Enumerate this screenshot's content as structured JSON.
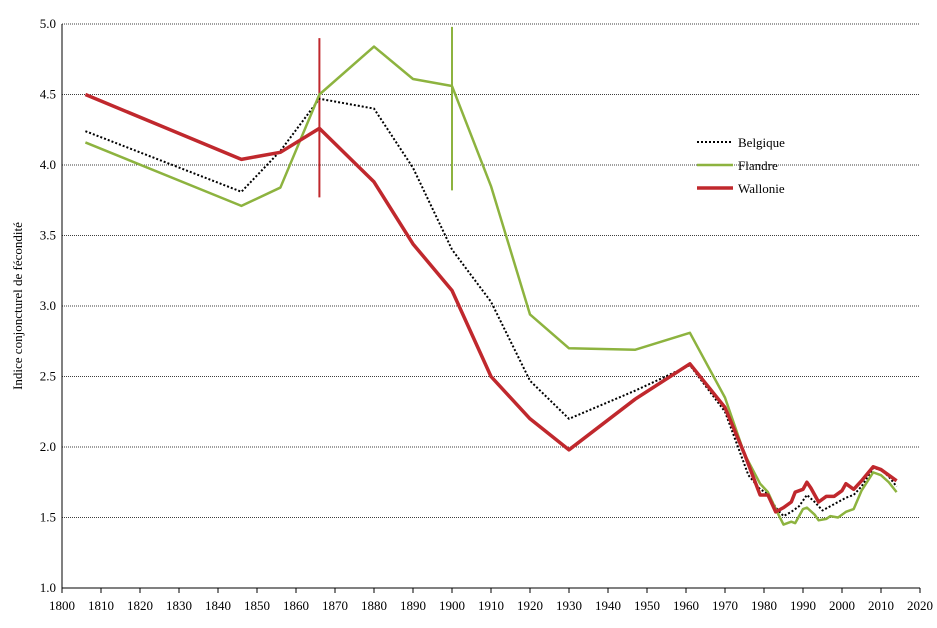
{
  "chart_data": {
    "type": "line",
    "ylabel": "Indice conjoncturel de fécondité",
    "xlim": [
      1800,
      2020
    ],
    "ylim": [
      1.0,
      5.0
    ],
    "xticks": [
      1800,
      1810,
      1820,
      1830,
      1840,
      1850,
      1860,
      1870,
      1880,
      1890,
      1900,
      1910,
      1920,
      1930,
      1940,
      1950,
      1960,
      1970,
      1980,
      1990,
      2000,
      2010,
      2020
    ],
    "yticks": [
      {
        "value": 1.0,
        "label": "1.0"
      },
      {
        "value": 1.5,
        "label": "1.5"
      },
      {
        "value": 2.0,
        "label": "2.0"
      },
      {
        "value": 2.5,
        "label": "2.5"
      },
      {
        "value": 3.0,
        "label": "3.0"
      },
      {
        "value": 3.5,
        "label": "3.5"
      },
      {
        "value": 4.0,
        "label": "4.0"
      },
      {
        "value": 4.5,
        "label": "4.5"
      },
      {
        "value": 5.0,
        "label": "5.0"
      }
    ],
    "grid": true,
    "legend": "upper right",
    "series": [
      {
        "name": "Belgique",
        "color": "#000000",
        "dash": "dotted",
        "x": [
          1806,
          1846,
          1856,
          1866,
          1880,
          1890,
          1900,
          1910,
          1920,
          1930,
          1947,
          1961,
          1970,
          1976,
          1979,
          1981,
          1983,
          1985,
          1987,
          1989,
          1991,
          1993,
          1995,
          1997,
          1999,
          2001,
          2003,
          2005,
          2008,
          2010,
          2012,
          2014
        ],
        "values": [
          4.24,
          3.81,
          4.1,
          4.47,
          4.4,
          3.98,
          3.4,
          3.03,
          2.47,
          2.2,
          2.4,
          2.58,
          2.25,
          1.8,
          1.7,
          1.67,
          1.57,
          1.51,
          1.54,
          1.58,
          1.66,
          1.61,
          1.55,
          1.58,
          1.61,
          1.64,
          1.66,
          1.72,
          1.85,
          1.84,
          1.79,
          1.72
        ]
      },
      {
        "name": "Flandre",
        "color": "#8db33f",
        "dash": "solid",
        "x": [
          1806,
          1846,
          1856,
          1866,
          1880,
          1890,
          1900,
          1910,
          1920,
          1930,
          1947,
          1961,
          1970,
          1975,
          1979,
          1981,
          1983,
          1985,
          1987,
          1988,
          1990,
          1991,
          1993,
          1994,
          1996,
          1997,
          1999,
          2001,
          2003,
          2005,
          2008,
          2010,
          2012,
          2014
        ],
        "values": [
          4.16,
          3.71,
          3.84,
          4.5,
          4.84,
          4.61,
          4.56,
          3.85,
          2.94,
          2.7,
          2.69,
          2.81,
          2.35,
          1.95,
          1.74,
          1.68,
          1.56,
          1.45,
          1.47,
          1.46,
          1.56,
          1.57,
          1.52,
          1.48,
          1.49,
          1.51,
          1.5,
          1.54,
          1.56,
          1.69,
          1.82,
          1.8,
          1.75,
          1.68
        ]
      },
      {
        "name": "Wallonie",
        "color": "#c0282d",
        "dash": "solid",
        "x": [
          1806,
          1846,
          1856,
          1866,
          1880,
          1890,
          1900,
          1910,
          1920,
          1930,
          1947,
          1961,
          1970,
          1975,
          1979,
          1981,
          1983,
          1985,
          1987,
          1988,
          1990,
          1991,
          1992,
          1994,
          1996,
          1998,
          2000,
          2001,
          2003,
          2005,
          2008,
          2010,
          2012,
          2014
        ],
        "values": [
          4.5,
          4.04,
          4.09,
          4.26,
          3.88,
          3.44,
          3.11,
          2.5,
          2.2,
          1.98,
          2.34,
          2.59,
          2.28,
          1.95,
          1.66,
          1.66,
          1.54,
          1.57,
          1.61,
          1.68,
          1.7,
          1.75,
          1.71,
          1.61,
          1.65,
          1.65,
          1.69,
          1.74,
          1.7,
          1.76,
          1.86,
          1.84,
          1.8,
          1.76
        ]
      }
    ],
    "vlines": [
      {
        "x": 1866,
        "y": [
          3.77,
          4.9
        ],
        "color": "#c0282d"
      },
      {
        "x": 1900,
        "y": [
          3.82,
          4.98
        ],
        "color": "#8db33f"
      }
    ]
  }
}
